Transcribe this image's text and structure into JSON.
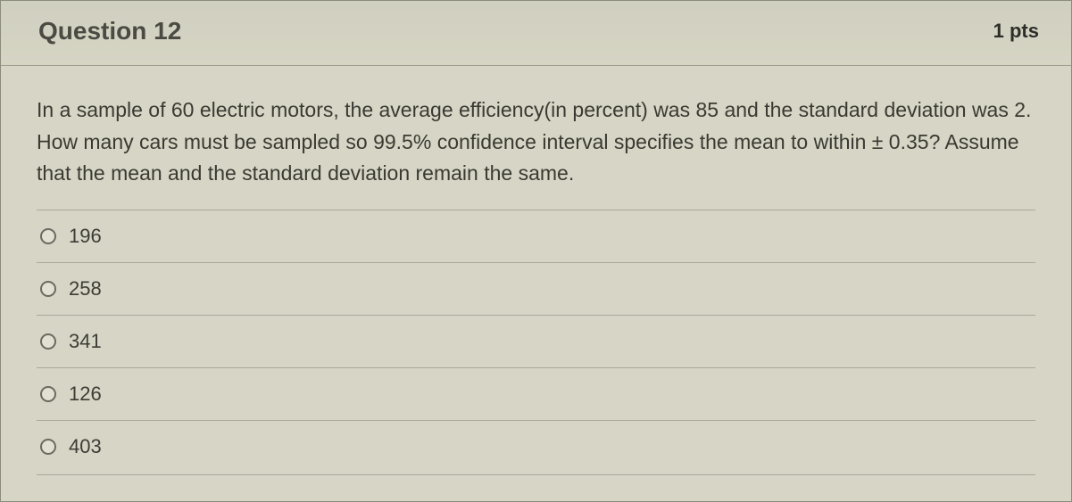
{
  "header": {
    "title": "Question 12",
    "points": "1 pts"
  },
  "question": {
    "text": "In a sample of 60 electric motors, the average efficiency(in percent) was 85 and the standard deviation was 2.  How many cars must be sampled so 99.5% confidence interval specifies the mean to within ± 0.35?  Assume that the mean and the standard deviation remain the same."
  },
  "options": [
    {
      "label": "196"
    },
    {
      "label": "258"
    },
    {
      "label": "341"
    },
    {
      "label": "126"
    },
    {
      "label": "403"
    }
  ],
  "styling": {
    "card_background": "#d6d5c6",
    "border_color": "#8c8c7d",
    "row_divider": "#a9a99b",
    "title_color": "#4b4b43",
    "points_color": "#2e2e29",
    "text_color": "#3a3a32",
    "radio_border": "#6a6a60",
    "title_fontsize": 28,
    "points_fontsize": 22,
    "prompt_fontsize": 23,
    "option_fontsize": 22
  }
}
